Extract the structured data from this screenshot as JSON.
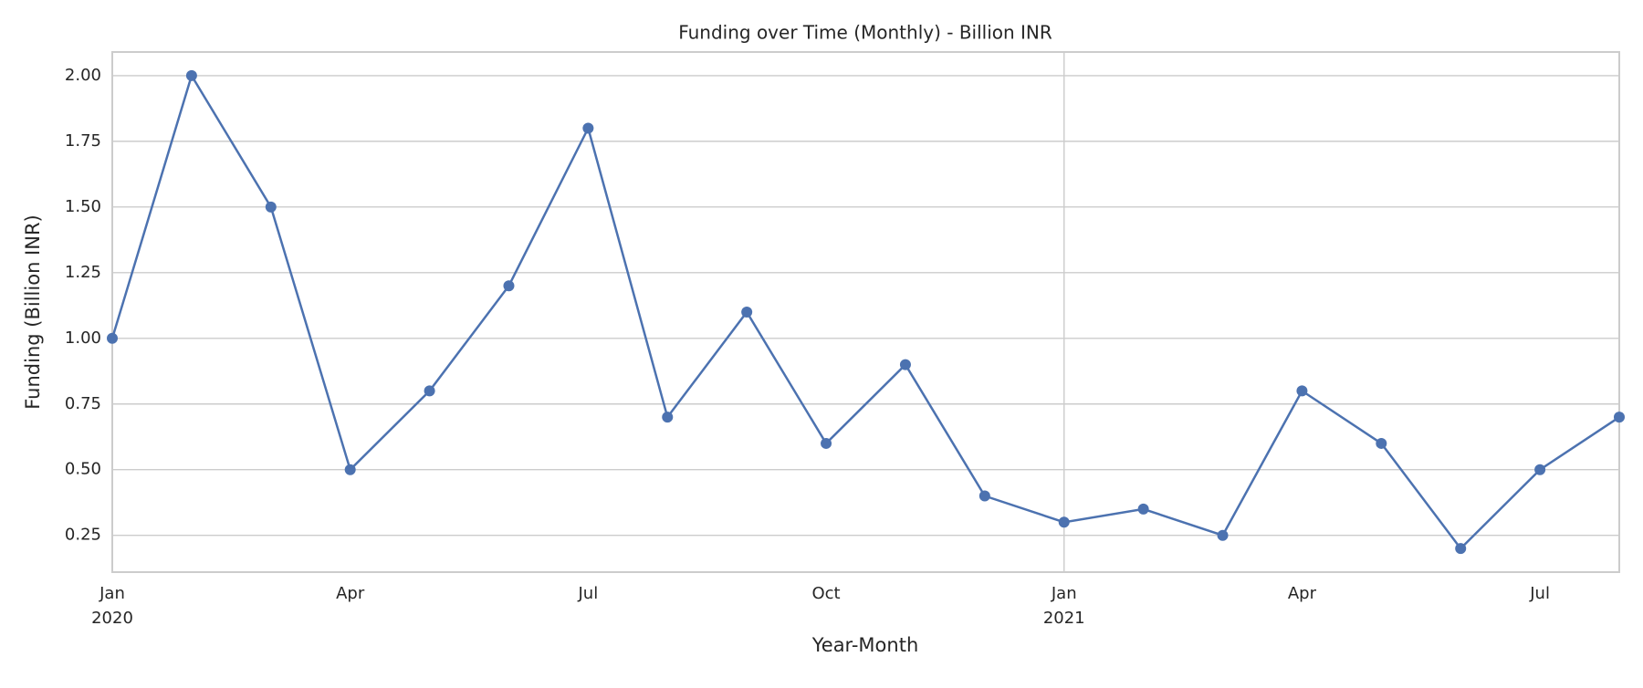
{
  "chart_data": {
    "type": "line",
    "title": "Funding over Time (Monthly) - Billion INR",
    "x_label": "Year-Month",
    "y_label": "Funding (Billion INR)",
    "x": [
      "2020-01",
      "2020-02",
      "2020-03",
      "2020-04",
      "2020-05",
      "2020-06",
      "2020-07",
      "2020-08",
      "2020-09",
      "2020-10",
      "2020-11",
      "2020-12",
      "2021-01",
      "2021-02",
      "2021-03",
      "2021-04",
      "2021-05",
      "2021-06",
      "2021-07",
      "2021-08"
    ],
    "series": [
      {
        "name": "Funding",
        "color": "#4c72b0",
        "values": [
          1.0,
          2.0,
          1.5,
          0.5,
          0.8,
          1.2,
          1.8,
          0.7,
          1.1,
          0.6,
          0.9,
          0.4,
          0.3,
          0.35,
          0.25,
          0.8,
          0.6,
          0.2,
          0.5,
          0.7
        ]
      }
    ],
    "xlim": [
      "2020-01",
      "2021-08"
    ],
    "xticks": [
      {
        "value": "2020-01",
        "label": "Jan",
        "year": "2020"
      },
      {
        "value": "2020-04",
        "label": "Apr"
      },
      {
        "value": "2020-07",
        "label": "Jul"
      },
      {
        "value": "2020-10",
        "label": "Oct"
      },
      {
        "value": "2021-01",
        "label": "Jan",
        "year": "2021"
      },
      {
        "value": "2021-04",
        "label": "Apr"
      },
      {
        "value": "2021-07",
        "label": "Jul"
      }
    ],
    "ylim": [
      0.11,
      2.09
    ],
    "yticks": [
      {
        "value": 0.25,
        "label": "0.25"
      },
      {
        "value": 0.5,
        "label": "0.50"
      },
      {
        "value": 0.75,
        "label": "0.75"
      },
      {
        "value": 1.0,
        "label": "1.00"
      },
      {
        "value": 1.25,
        "label": "1.25"
      },
      {
        "value": 1.5,
        "label": "1.50"
      },
      {
        "value": 1.75,
        "label": "1.75"
      },
      {
        "value": 2.0,
        "label": "2.00"
      }
    ],
    "grid": true
  }
}
